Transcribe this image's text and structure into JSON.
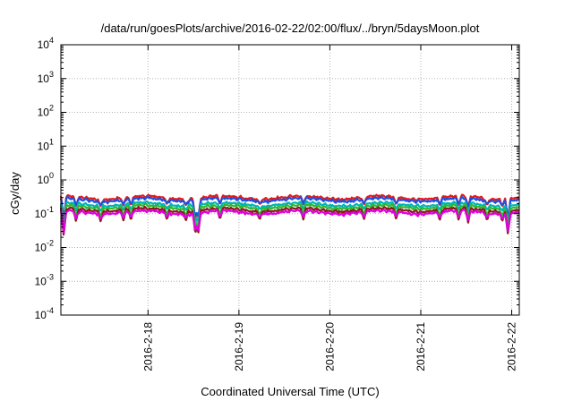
{
  "chart_data": {
    "type": "line",
    "title": "/data/run/goesPlots/archive/2016-02-22/02:00/flux/../bryn/5daysMoon.plot",
    "xlabel": "Coordinated Universal Time (UTC)",
    "ylabel": "cGy/day",
    "y_scale": "log",
    "ylim": [
      0.0001,
      10000
    ],
    "y_ticks": [
      {
        "value": 0.0001,
        "base": "10",
        "exp": "-4"
      },
      {
        "value": 0.001,
        "base": "10",
        "exp": "-3"
      },
      {
        "value": 0.01,
        "base": "10",
        "exp": "-2"
      },
      {
        "value": 0.1,
        "base": "10",
        "exp": "-1"
      },
      {
        "value": 1,
        "base": "10",
        "exp": "0"
      },
      {
        "value": 10,
        "base": "10",
        "exp": "1"
      },
      {
        "value": 100,
        "base": "10",
        "exp": "2"
      },
      {
        "value": 1000,
        "base": "10",
        "exp": "3"
      },
      {
        "value": 10000,
        "base": "10",
        "exp": "4"
      }
    ],
    "xlim": [
      "2016-02-17 01:00",
      "2016-02-22 02:00"
    ],
    "x_ticks": [
      {
        "value": "2016-02-18",
        "label": "2016-2-18"
      },
      {
        "value": "2016-02-19",
        "label": "2016-2-19"
      },
      {
        "value": "2016-02-20",
        "label": "2016-2-20"
      },
      {
        "value": "2016-02-21",
        "label": "2016-2-21"
      },
      {
        "value": "2016-02-22",
        "label": "2016-2-22"
      }
    ],
    "grid": true,
    "legend": "none",
    "series": [
      {
        "color": "#e41a1c",
        "baseline": 0.3,
        "drop_factor": 0.7
      },
      {
        "color": "#1e4fe0",
        "baseline": 0.26,
        "drop_factor": 0.55
      },
      {
        "color": "#00b5b5",
        "baseline": 0.19,
        "drop_factor": 0.6
      },
      {
        "color": "#2fb82f",
        "baseline": 0.16,
        "drop_factor": 0.75
      },
      {
        "color": "#8b1a1a",
        "baseline": 0.13,
        "drop_factor": 0.85
      },
      {
        "color": "#e000e0",
        "baseline": 0.11,
        "drop_factor": 0.4
      }
    ],
    "dips": [
      {
        "time": "2016-02-17 01:45",
        "min": 0.025
      },
      {
        "time": "2016-02-17 05:00",
        "min": 0.07
      },
      {
        "time": "2016-02-17 11:30",
        "min": 0.07
      },
      {
        "time": "2016-02-17 17:30",
        "min": 0.075
      },
      {
        "time": "2016-02-17 19:30",
        "min": 0.075
      },
      {
        "time": "2016-02-18 05:00",
        "min": 0.08
      },
      {
        "time": "2016-02-18 10:00",
        "min": 0.075
      },
      {
        "time": "2016-02-18 12:30",
        "min": 0.028
      },
      {
        "time": "2016-02-18 13:15",
        "min": 0.03
      },
      {
        "time": "2016-02-18 19:00",
        "min": 0.08
      },
      {
        "time": "2016-02-19 05:30",
        "min": 0.08
      },
      {
        "time": "2016-02-19 17:00",
        "min": 0.08
      },
      {
        "time": "2016-02-20 09:00",
        "min": 0.08
      },
      {
        "time": "2016-02-20 17:30",
        "min": 0.08
      },
      {
        "time": "2016-02-21 05:00",
        "min": 0.075
      },
      {
        "time": "2016-02-21 10:00",
        "min": 0.075
      },
      {
        "time": "2016-02-21 12:30",
        "min": 0.065
      },
      {
        "time": "2016-02-21 17:30",
        "min": 0.075
      },
      {
        "time": "2016-02-21 21:30",
        "min": 0.07
      },
      {
        "time": "2016-02-21 23:00",
        "min": 0.03
      }
    ]
  }
}
